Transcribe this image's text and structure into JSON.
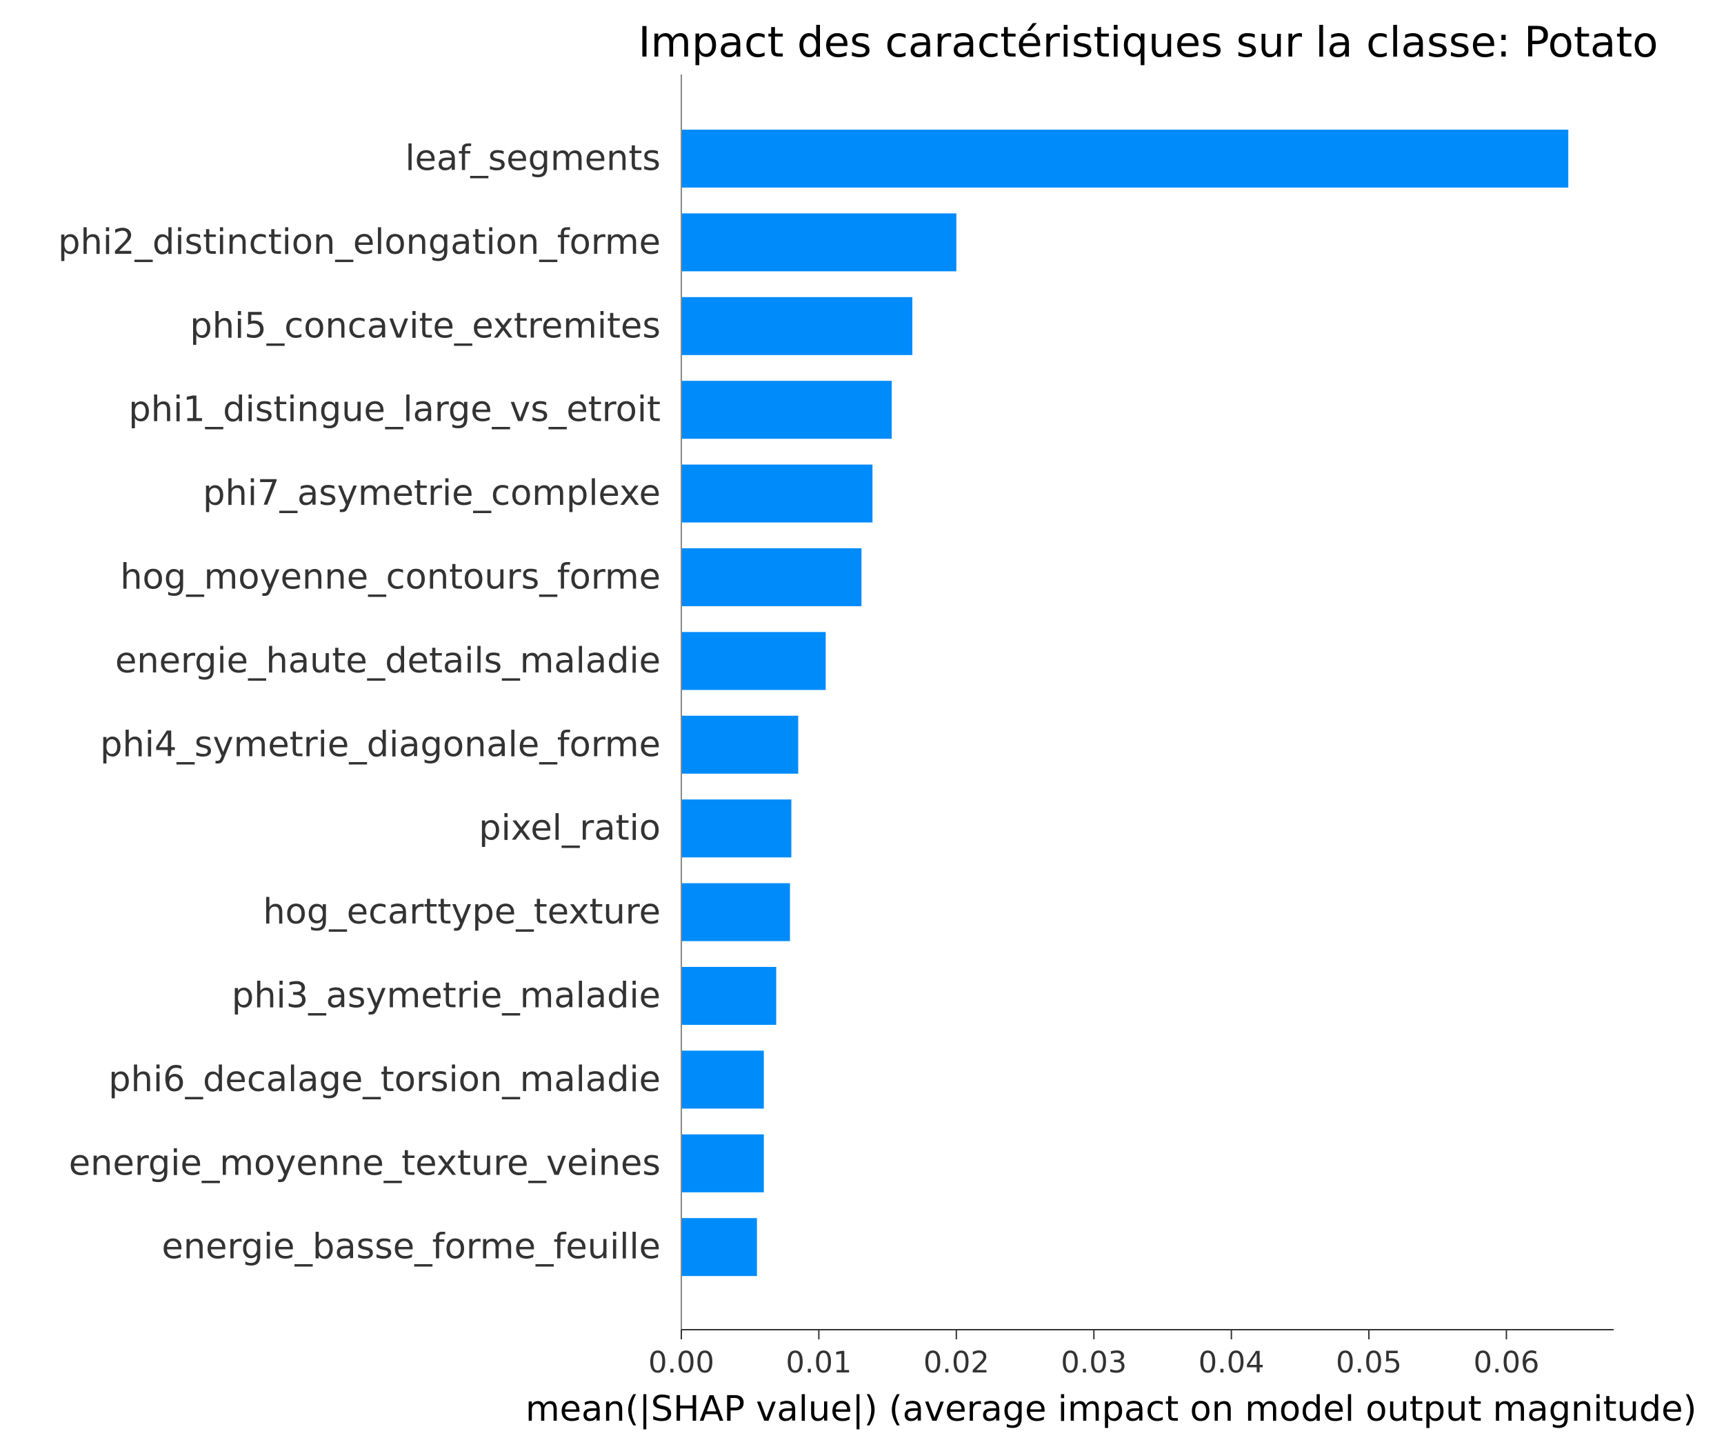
{
  "chart_data": {
    "type": "bar",
    "orientation": "horizontal",
    "title": "Impact des caractéristiques sur la classe: Potato",
    "xlabel": "mean(|SHAP value|) (average impact on model output magnitude)",
    "ylabel": "",
    "categories": [
      "leaf_segments",
      "phi2_distinction_elongation_forme",
      "phi5_concavite_extremites",
      "phi1_distingue_large_vs_etroit",
      "phi7_asymetrie_complexe",
      "hog_moyenne_contours_forme",
      "energie_haute_details_maladie",
      "phi4_symetrie_diagonale_forme",
      "pixel_ratio",
      "hog_ecarttype_texture",
      "phi3_asymetrie_maladie",
      "phi6_decalage_torsion_maladie",
      "energie_moyenne_texture_veines",
      "energie_basse_forme_feuille"
    ],
    "values": [
      0.0645,
      0.02,
      0.0168,
      0.0153,
      0.0139,
      0.0131,
      0.0105,
      0.0085,
      0.008,
      0.0079,
      0.0069,
      0.006,
      0.006,
      0.0055
    ],
    "xticks": [
      "0.00",
      "0.01",
      "0.02",
      "0.03",
      "0.04",
      "0.05",
      "0.06"
    ],
    "xlim": [
      0,
      0.0678
    ],
    "bar_color": "#008bfb",
    "grid": false,
    "legend": "none"
  }
}
